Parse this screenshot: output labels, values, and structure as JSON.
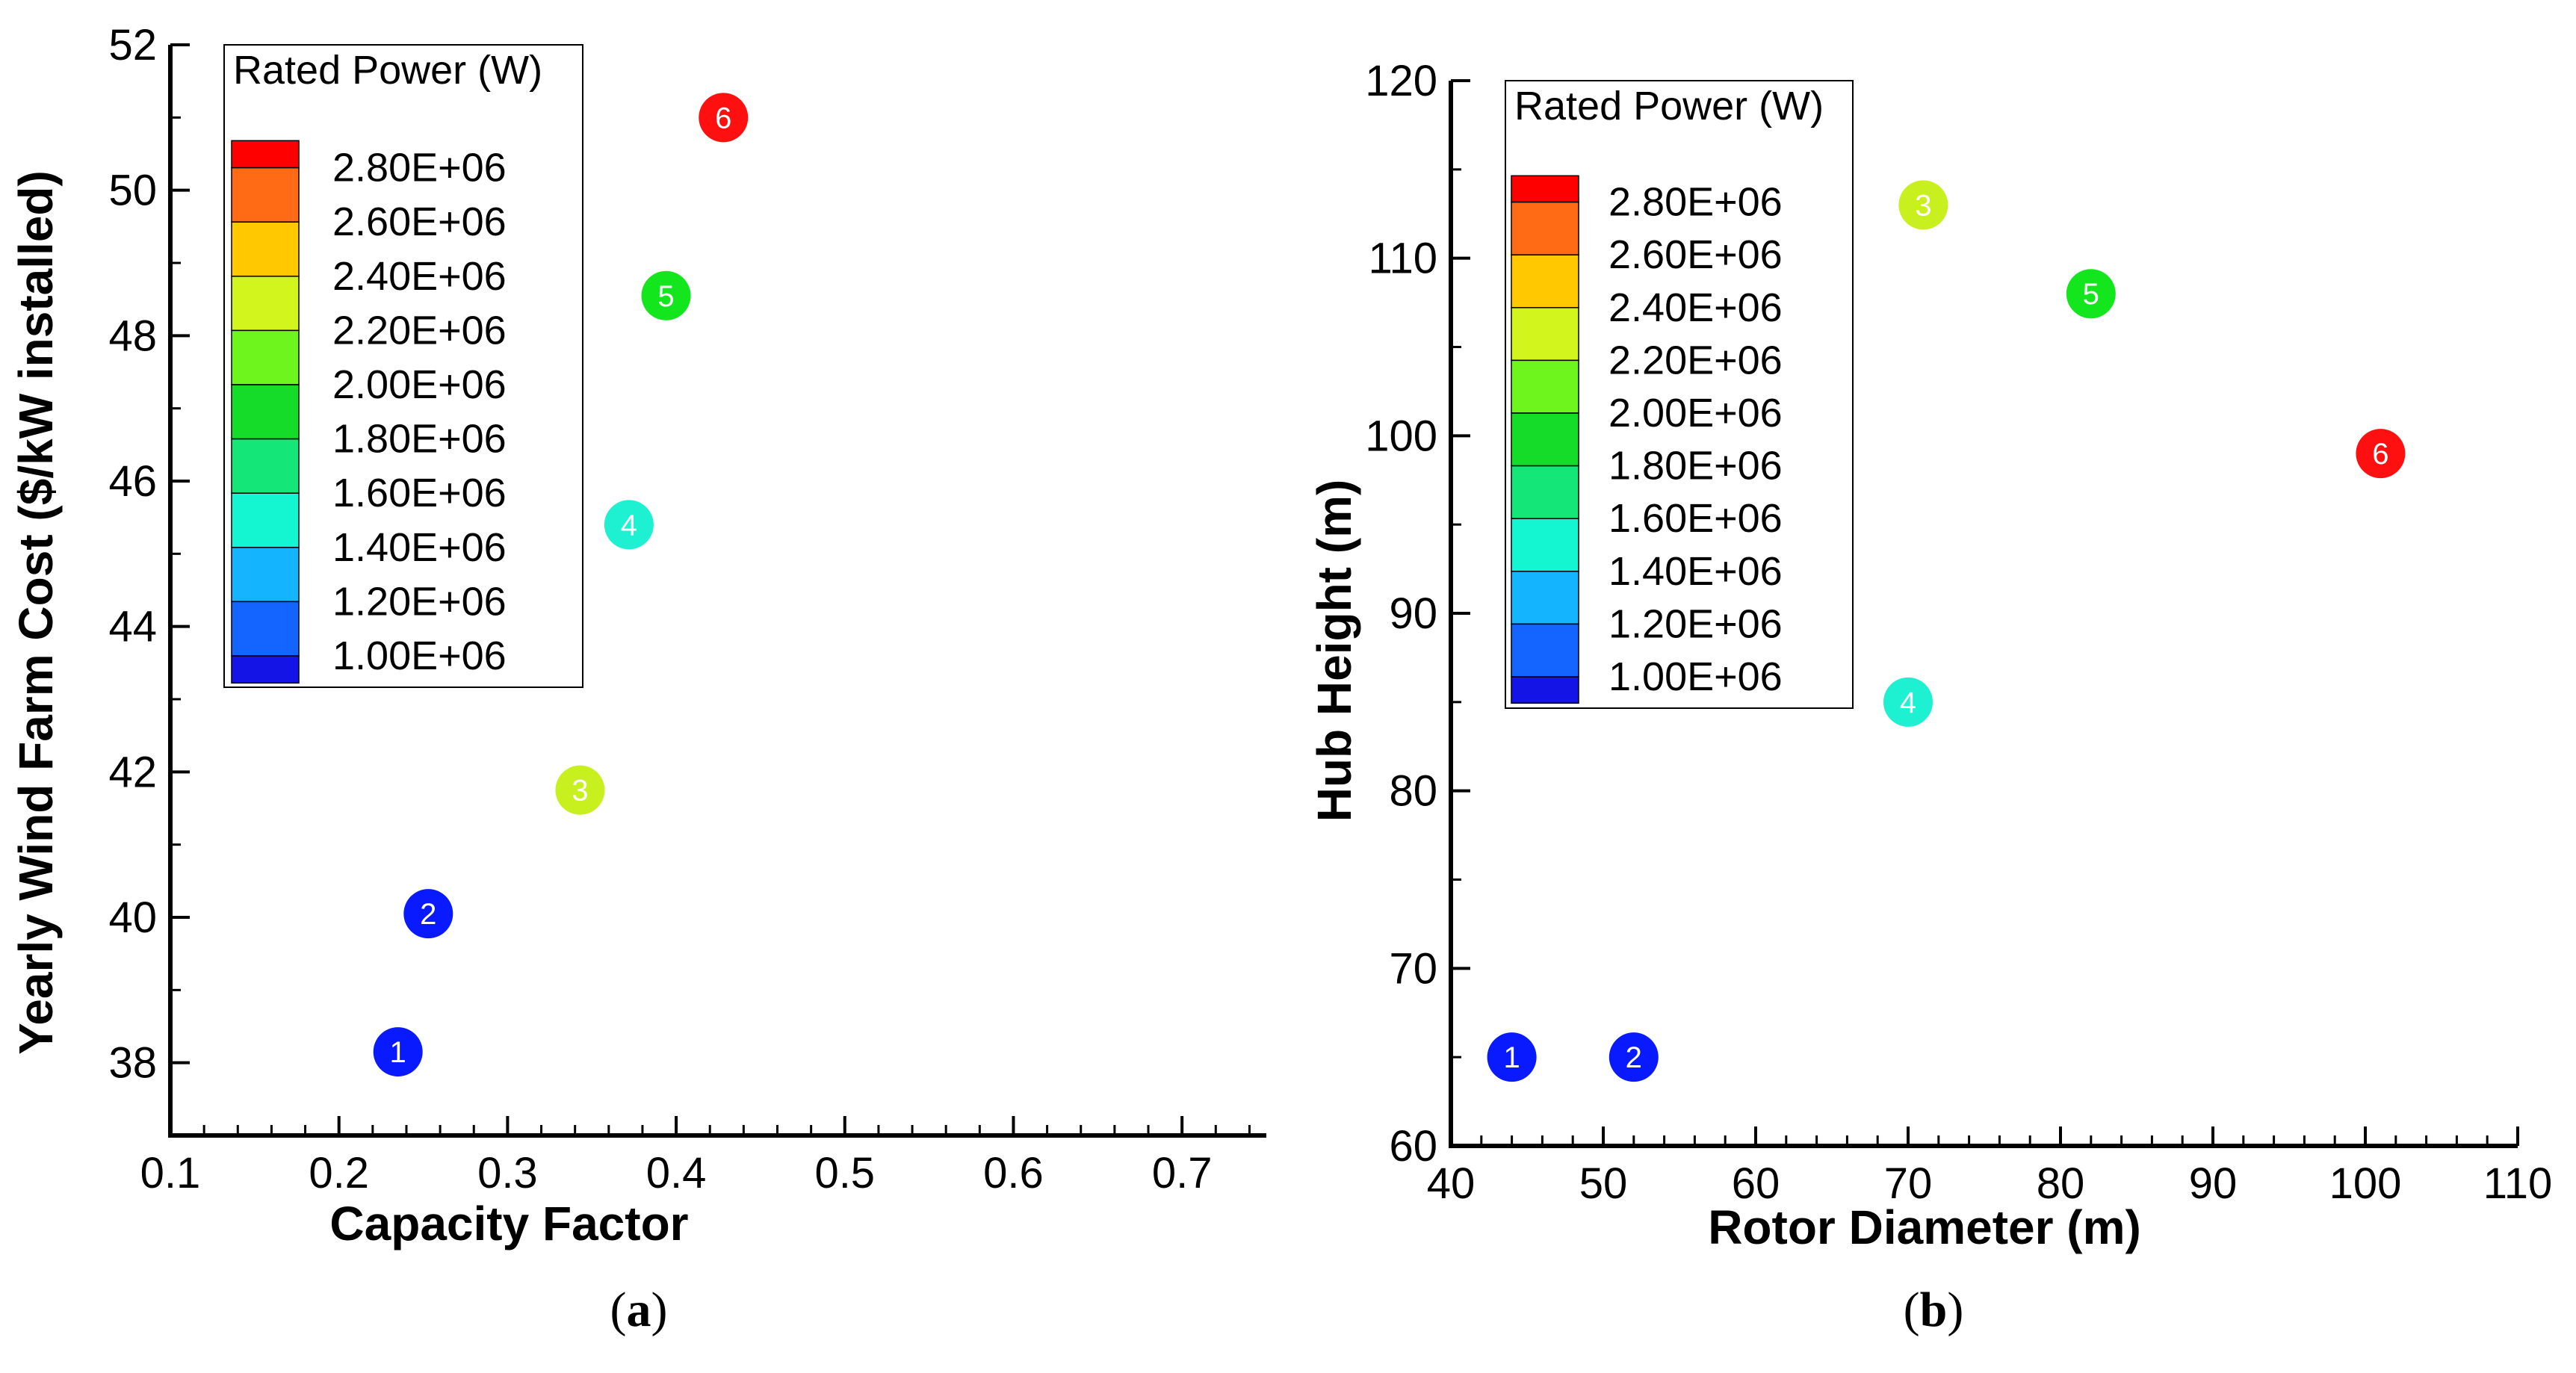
{
  "figure": {
    "captions": [
      "(a)",
      "(b)"
    ]
  },
  "chart_data": [
    {
      "type": "scatter",
      "panel": "a",
      "caption_letter": "a",
      "xlabel": "Capacity Factor",
      "ylabel": "Yearly Wind Farm Cost ($/kW installed)",
      "xlim": [
        0.1,
        0.75
      ],
      "ylim": [
        37,
        52
      ],
      "xticks": [
        0.1,
        0.2,
        0.3,
        0.4,
        0.5,
        0.6,
        0.7
      ],
      "xtick_labels": [
        "0.1",
        "0.2",
        "0.3",
        "0.4",
        "0.5",
        "0.6",
        "0.7"
      ],
      "yticks": [
        38,
        40,
        42,
        44,
        46,
        48,
        50,
        52
      ],
      "ytick_labels": [
        "38",
        "40",
        "42",
        "44",
        "46",
        "48",
        "50",
        "52"
      ],
      "points": [
        {
          "label": "1",
          "x": 0.235,
          "y": 38.15,
          "color": "#0a1aff"
        },
        {
          "label": "2",
          "x": 0.253,
          "y": 40.05,
          "color": "#0a1aff"
        },
        {
          "label": "3",
          "x": 0.343,
          "y": 41.75,
          "color": "#c8f01e"
        },
        {
          "label": "4",
          "x": 0.372,
          "y": 45.4,
          "color": "#1ef0d2"
        },
        {
          "label": "5",
          "x": 0.394,
          "y": 48.55,
          "color": "#14e61e"
        },
        {
          "label": "6",
          "x": 0.428,
          "y": 51.0,
          "color": "#ff1010"
        }
      ],
      "legend": {
        "title": "Rated Power (W)",
        "position": "top-left",
        "labels": [
          "2.80E+06",
          "2.60E+06",
          "2.40E+06",
          "2.20E+06",
          "2.00E+06",
          "1.80E+06",
          "1.60E+06",
          "1.40E+06",
          "1.20E+06",
          "1.00E+06"
        ],
        "colors": [
          "#ff0000",
          "#ff6a14",
          "#ffc800",
          "#d2f51e",
          "#6ef51e",
          "#14dc28",
          "#14e678",
          "#14f5d2",
          "#14b4ff",
          "#1464ff",
          "#1414e6"
        ]
      }
    },
    {
      "type": "scatter",
      "panel": "b",
      "caption_letter": "b",
      "xlabel": "Rotor Diameter (m)",
      "ylabel": "Hub Height (m)",
      "xlim": [
        40,
        110
      ],
      "ylim": [
        60,
        120
      ],
      "xticks": [
        40,
        50,
        60,
        70,
        80,
        90,
        100,
        110
      ],
      "xtick_labels": [
        "40",
        "50",
        "60",
        "70",
        "80",
        "90",
        "100",
        "110"
      ],
      "yticks": [
        60,
        70,
        80,
        90,
        100,
        110,
        120
      ],
      "ytick_labels": [
        "60",
        "70",
        "80",
        "90",
        "100",
        "110",
        "120"
      ],
      "points": [
        {
          "label": "1",
          "x": 44,
          "y": 65,
          "color": "#0a1aff"
        },
        {
          "label": "2",
          "x": 52,
          "y": 65,
          "color": "#0a1aff"
        },
        {
          "label": "3",
          "x": 71,
          "y": 113,
          "color": "#c8f01e"
        },
        {
          "label": "4",
          "x": 70,
          "y": 85,
          "color": "#1ef0d2"
        },
        {
          "label": "5",
          "x": 82,
          "y": 108,
          "color": "#14e61e"
        },
        {
          "label": "6",
          "x": 101,
          "y": 99,
          "color": "#ff1010"
        }
      ],
      "legend": {
        "title": "Rated Power (W)",
        "position": "top-left",
        "labels": [
          "2.80E+06",
          "2.60E+06",
          "2.40E+06",
          "2.20E+06",
          "2.00E+06",
          "1.80E+06",
          "1.60E+06",
          "1.40E+06",
          "1.20E+06",
          "1.00E+06"
        ],
        "colors": [
          "#ff0000",
          "#ff6a14",
          "#ffc800",
          "#d2f51e",
          "#6ef51e",
          "#14dc28",
          "#14e678",
          "#14f5d2",
          "#14b4ff",
          "#1464ff",
          "#1414e6"
        ]
      }
    }
  ]
}
